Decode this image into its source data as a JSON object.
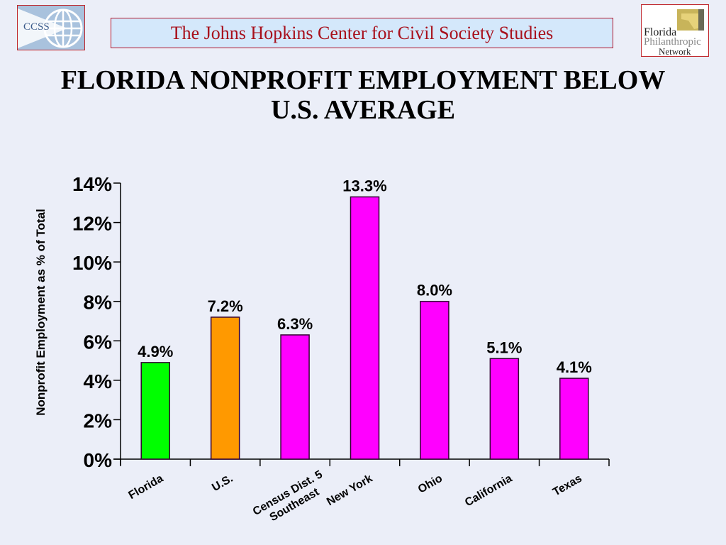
{
  "header": {
    "left_logo_text": "CCSS",
    "banner_text": "The Johns Hopkins Center for Civil Society Studies",
    "right_logo_lines": [
      "Florida",
      "Philanthropic",
      "Network"
    ]
  },
  "colors": {
    "background": "#ebeef8",
    "banner_bg": "#d4e8fb",
    "banner_text": "#a8101c",
    "florida_bar": "#00ff00",
    "us_bar": "#ff9900",
    "other_bars": "#ff00ff"
  },
  "chart_data": {
    "type": "bar",
    "title": "FLORIDA NONPROFIT EMPLOYMENT BELOW U.S. AVERAGE",
    "title_lines": [
      "FLORIDA NONPROFIT EMPLOYMENT BELOW",
      "U.S. AVERAGE"
    ],
    "xlabel": "",
    "ylabel": "Nonprofit Employment as % of Total",
    "ylim": [
      0,
      14
    ],
    "yticks": [
      0,
      2,
      4,
      6,
      8,
      10,
      12,
      14
    ],
    "ytick_labels": [
      "0%",
      "2%",
      "4%",
      "6%",
      "8%",
      "10%",
      "12%",
      "14%"
    ],
    "categories": [
      "Florida",
      "U.S.",
      "Census Dist. 5 Southeast",
      "New York",
      "Ohio",
      "California",
      "Texas"
    ],
    "category_label_lines": [
      [
        "Florida"
      ],
      [
        "U.S."
      ],
      [
        "Census Dist. 5",
        "Southeast"
      ],
      [
        "New York"
      ],
      [
        "Ohio"
      ],
      [
        "California"
      ],
      [
        "Texas"
      ]
    ],
    "values": [
      4.9,
      7.2,
      6.3,
      13.3,
      8.0,
      5.1,
      4.1
    ],
    "data_labels": [
      "4.9%",
      "7.2%",
      "6.3%",
      "13.3%",
      "8.0%",
      "5.1%",
      "4.1%"
    ],
    "bar_colors": [
      "#00ff00",
      "#ff9900",
      "#ff00ff",
      "#ff00ff",
      "#ff00ff",
      "#ff00ff",
      "#ff00ff"
    ],
    "grid": false,
    "legend": "none"
  }
}
